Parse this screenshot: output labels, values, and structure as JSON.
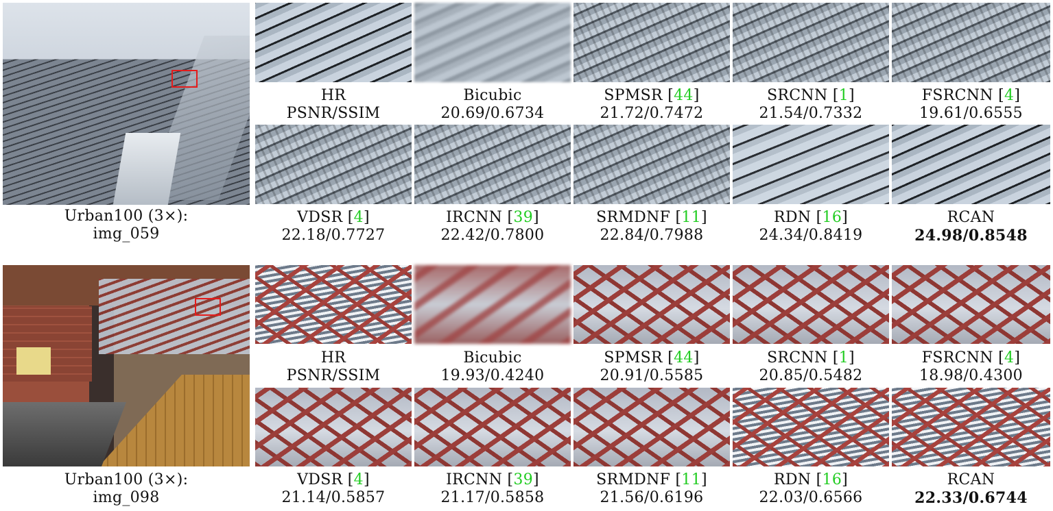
{
  "row1": {
    "overview_caption": [
      "Urban100 (3×):",
      "img_059"
    ],
    "top": [
      {
        "name": "HR",
        "metric": "PSNR/SSIM",
        "ref": ""
      },
      {
        "name": "Bicubic",
        "metric": "20.69/0.6734",
        "ref": ""
      },
      {
        "name": "SPMSR",
        "metric": "21.72/0.7472",
        "ref": "44"
      },
      {
        "name": "SRCNN",
        "metric": "21.54/0.7332",
        "ref": "1"
      },
      {
        "name": "FSRCNN",
        "metric": "19.61/0.6555",
        "ref": "4"
      }
    ],
    "bottom": [
      {
        "name": "VDSR",
        "metric": "22.18/0.7727",
        "ref": "4"
      },
      {
        "name": "IRCNN",
        "metric": "22.42/0.7800",
        "ref": "39"
      },
      {
        "name": "SRMDNF",
        "metric": "22.84/0.7988",
        "ref": "11"
      },
      {
        "name": "RDN",
        "metric": "24.34/0.8419",
        "ref": "16"
      },
      {
        "name": "RCAN",
        "metric": "24.98/0.8548",
        "ref": ""
      }
    ]
  },
  "row2": {
    "overview_caption": [
      "Urban100 (3×):",
      "img_098"
    ],
    "top": [
      {
        "name": "HR",
        "metric": "PSNR/SSIM",
        "ref": ""
      },
      {
        "name": "Bicubic",
        "metric": "19.93/0.4240",
        "ref": ""
      },
      {
        "name": "SPMSR",
        "metric": "20.91/0.5585",
        "ref": "44"
      },
      {
        "name": "SRCNN",
        "metric": "20.85/0.5482",
        "ref": "1"
      },
      {
        "name": "FSRCNN",
        "metric": "18.98/0.4300",
        "ref": "4"
      }
    ],
    "bottom": [
      {
        "name": "VDSR",
        "metric": "21.14/0.5857",
        "ref": "4"
      },
      {
        "name": "IRCNN",
        "metric": "21.17/0.5858",
        "ref": "39"
      },
      {
        "name": "SRMDNF",
        "metric": "21.56/0.6196",
        "ref": "11"
      },
      {
        "name": "RDN",
        "metric": "22.03/0.6566",
        "ref": "16"
      },
      {
        "name": "RCAN",
        "metric": "22.33/0.6744",
        "ref": ""
      }
    ]
  }
}
